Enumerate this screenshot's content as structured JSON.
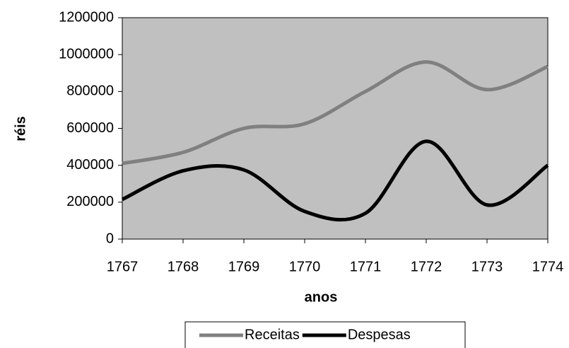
{
  "chart_data": {
    "type": "line",
    "x": [
      1767,
      1768,
      1769,
      1770,
      1771,
      1772,
      1773,
      1774
    ],
    "series": [
      {
        "name": "Receitas",
        "color": "#808080",
        "values": [
          410000,
          470000,
          600000,
          625000,
          800000,
          960000,
          810000,
          935000
        ]
      },
      {
        "name": "Despesas",
        "color": "#000000",
        "values": [
          215000,
          370000,
          375000,
          150000,
          140000,
          530000,
          185000,
          400000
        ]
      }
    ],
    "xlabel": "anos",
    "ylabel": "réis",
    "xlim": [
      1767,
      1774
    ],
    "xticks": [
      1767,
      1768,
      1769,
      1770,
      1771,
      1772,
      1773,
      1774
    ],
    "ylim": [
      0,
      1200000
    ],
    "yticks": [
      0,
      200000,
      400000,
      600000,
      800000,
      1000000,
      1200000
    ],
    "smooth": true,
    "legend": "bottom",
    "plot_background": "#c0c0c0"
  }
}
